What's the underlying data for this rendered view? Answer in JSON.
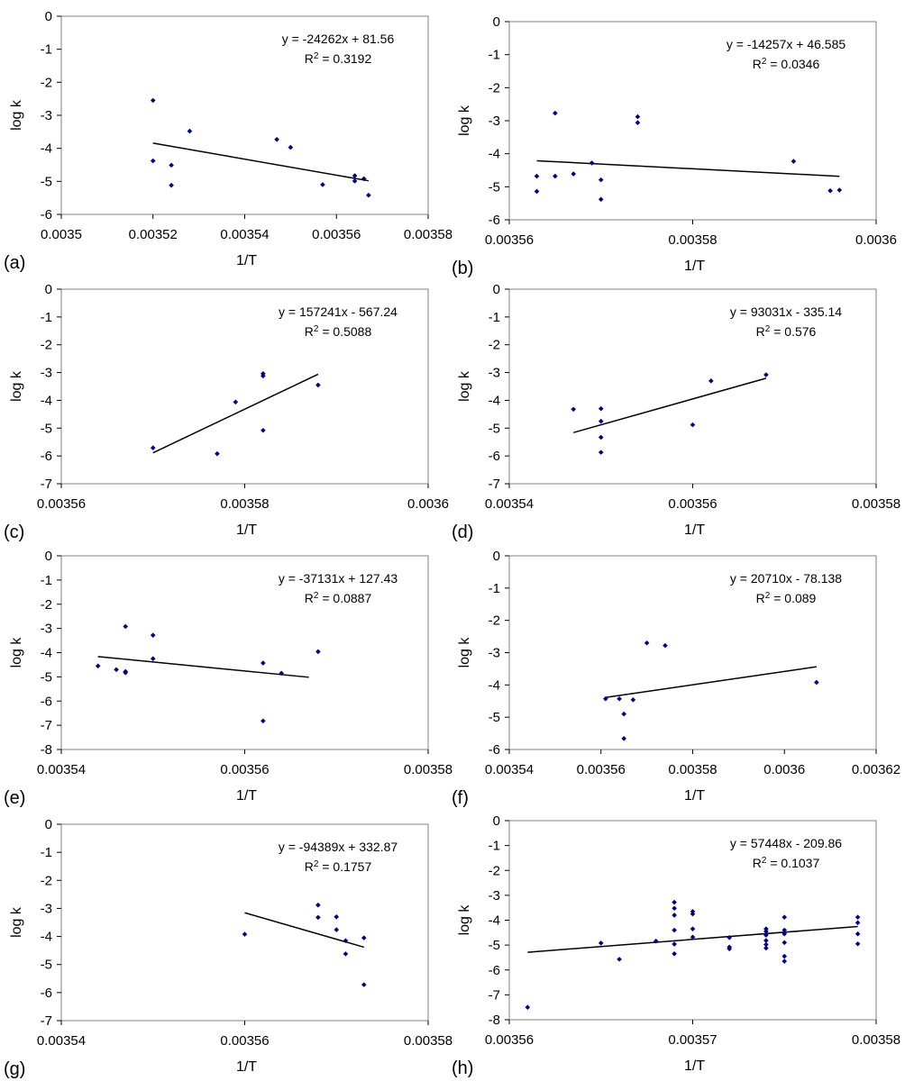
{
  "chart_data": [
    {
      "type": "scatter",
      "panel_label": "(a)",
      "xlabel": "1/T",
      "ylabel": "log k",
      "xlim": [
        0.0035,
        0.00358
      ],
      "ylim": [
        -6,
        0
      ],
      "xticks": [
        0.0035,
        0.00352,
        0.00354,
        0.00356,
        0.00358
      ],
      "xtick_labels": [
        "0.0035",
        "0.00352",
        "0.00354",
        "0.00356",
        "0.00358"
      ],
      "yticks": [
        0,
        -1,
        -2,
        -3,
        -4,
        -5,
        -6
      ],
      "ytick_labels": [
        "0",
        "-1",
        "-2",
        "-3",
        "-4",
        "-5",
        "-6"
      ],
      "equation": "y = -24262x + 81.56",
      "r2_label": "R",
      "r2_value": " = 0.3192",
      "legend_position": "top-right",
      "trend": {
        "slope": -24262,
        "intercept": 81.56,
        "x_range": [
          0.00352,
          0.003567
        ]
      },
      "points": [
        [
          0.00352,
          -2.55
        ],
        [
          0.00352,
          -4.38
        ],
        [
          0.003524,
          -4.51
        ],
        [
          0.003524,
          -5.12
        ],
        [
          0.003528,
          -3.48
        ],
        [
          0.003547,
          -3.73
        ],
        [
          0.00355,
          -3.97
        ],
        [
          0.003557,
          -5.1
        ],
        [
          0.003564,
          -4.83
        ],
        [
          0.003564,
          -4.99
        ],
        [
          0.003566,
          -4.92
        ],
        [
          0.003567,
          -5.42
        ]
      ]
    },
    {
      "type": "scatter",
      "panel_label": "(b)",
      "xlabel": "1/T",
      "ylabel": "log k",
      "xlim": [
        0.00356,
        0.0036
      ],
      "ylim": [
        -6,
        0
      ],
      "xticks": [
        0.00356,
        0.00358,
        0.0036
      ],
      "xtick_labels": [
        "0.00356",
        "0.00358",
        "0.0036"
      ],
      "yticks": [
        0,
        -1,
        -2,
        -3,
        -4,
        -5,
        -6
      ],
      "ytick_labels": [
        "0",
        "-1",
        "-2",
        "-3",
        "-4",
        "-5",
        "-6"
      ],
      "equation": "y = -14257x + 46.585",
      "r2_label": "R",
      "r2_value": " = 0.0346",
      "legend_position": "top-right",
      "trend": {
        "slope": -14257,
        "intercept": 46.585,
        "x_range": [
          0.003563,
          0.003596
        ]
      },
      "points": [
        [
          0.003563,
          -4.68
        ],
        [
          0.003563,
          -5.14
        ],
        [
          0.003565,
          -2.77
        ],
        [
          0.003565,
          -4.68
        ],
        [
          0.003567,
          -4.61
        ],
        [
          0.003569,
          -4.28
        ],
        [
          0.00357,
          -4.79
        ],
        [
          0.00357,
          -5.38
        ],
        [
          0.003574,
          -2.88
        ],
        [
          0.003574,
          -3.06
        ],
        [
          0.003591,
          -4.23
        ],
        [
          0.003595,
          -5.12
        ],
        [
          0.003596,
          -5.1
        ]
      ]
    },
    {
      "type": "scatter",
      "panel_label": "(c)",
      "xlabel": "1/T",
      "ylabel": "log k",
      "xlim": [
        0.00356,
        0.0036
      ],
      "ylim": [
        -7,
        0
      ],
      "xticks": [
        0.00356,
        0.00358,
        0.0036
      ],
      "xtick_labels": [
        "0.00356",
        "0.00358",
        "0.0036"
      ],
      "yticks": [
        0,
        -1,
        -2,
        -3,
        -4,
        -5,
        -6,
        -7
      ],
      "ytick_labels": [
        "0",
        "-1",
        "-2",
        "-3",
        "-4",
        "-5",
        "-6",
        "-7"
      ],
      "equation": "y = 157241x - 567.24",
      "r2_label": "R",
      "r2_value": " = 0.5088",
      "legend_position": "top-right",
      "trend": {
        "slope": 157241,
        "intercept": -567.24,
        "x_range": [
          0.00357,
          0.003588
        ]
      },
      "points": [
        [
          0.00357,
          -5.71
        ],
        [
          0.003577,
          -5.92
        ],
        [
          0.003579,
          -4.06
        ],
        [
          0.003582,
          -3.04
        ],
        [
          0.003582,
          -3.12
        ],
        [
          0.003582,
          -5.08
        ],
        [
          0.003588,
          -3.45
        ]
      ]
    },
    {
      "type": "scatter",
      "panel_label": "(d)",
      "xlabel": "1/T",
      "ylabel": "log k",
      "xlim": [
        0.00354,
        0.00358
      ],
      "ylim": [
        -7,
        0
      ],
      "xticks": [
        0.00354,
        0.00356,
        0.00358
      ],
      "xtick_labels": [
        "0.00354",
        "0.00356",
        "0.00358"
      ],
      "yticks": [
        0,
        -1,
        -2,
        -3,
        -4,
        -5,
        -6,
        -7
      ],
      "ytick_labels": [
        "0",
        "-1",
        "-2",
        "-3",
        "-4",
        "-5",
        "-6",
        "-7"
      ],
      "equation": "y = 93031x - 335.14",
      "r2_label": "R",
      "r2_value": " = 0.576",
      "legend_position": "top-right",
      "trend": {
        "slope": 93031,
        "intercept": -335.14,
        "x_range": [
          0.003547,
          0.003568
        ]
      },
      "points": [
        [
          0.003547,
          -4.32
        ],
        [
          0.00355,
          -4.3
        ],
        [
          0.00355,
          -4.75
        ],
        [
          0.00355,
          -5.33
        ],
        [
          0.00355,
          -5.87
        ],
        [
          0.00356,
          -4.88
        ],
        [
          0.003562,
          -3.3
        ],
        [
          0.003568,
          -3.08
        ]
      ]
    },
    {
      "type": "scatter",
      "panel_label": "(e)",
      "xlabel": "1/T",
      "ylabel": "log k",
      "xlim": [
        0.00354,
        0.00358
      ],
      "ylim": [
        -8,
        0
      ],
      "xticks": [
        0.00354,
        0.00356,
        0.00358
      ],
      "xtick_labels": [
        "0.00354",
        "0.00356",
        "0.00358"
      ],
      "yticks": [
        0,
        -1,
        -2,
        -3,
        -4,
        -5,
        -6,
        -7,
        -8
      ],
      "ytick_labels": [
        "0",
        "-1",
        "-2",
        "-3",
        "-4",
        "-5",
        "-6",
        "-7",
        "-8"
      ],
      "equation": "y = -37131x + 127.43",
      "r2_label": "R",
      "r2_value": " = 0.0887",
      "legend_position": "top-right",
      "trend": {
        "slope": -37131,
        "intercept": 127.43,
        "x_range": [
          0.003544,
          0.003567
        ]
      },
      "points": [
        [
          0.003544,
          -4.55
        ],
        [
          0.003546,
          -4.7
        ],
        [
          0.003547,
          -2.92
        ],
        [
          0.003547,
          -4.78
        ],
        [
          0.003547,
          -4.83
        ],
        [
          0.00355,
          -3.28
        ],
        [
          0.00355,
          -4.25
        ],
        [
          0.003562,
          -4.43
        ],
        [
          0.003562,
          -6.82
        ],
        [
          0.003564,
          -4.85
        ],
        [
          0.003568,
          -3.96
        ]
      ]
    },
    {
      "type": "scatter",
      "panel_label": "(f)",
      "xlabel": "1/T",
      "ylabel": "log k",
      "xlim": [
        0.00354,
        0.00362
      ],
      "ylim": [
        -6,
        0
      ],
      "xticks": [
        0.00354,
        0.00356,
        0.00358,
        0.0036,
        0.00362
      ],
      "xtick_labels": [
        "0.00354",
        "0.00356",
        "0.00358",
        "0.0036",
        "0.00362"
      ],
      "yticks": [
        0,
        -1,
        -2,
        -3,
        -4,
        -5,
        -6
      ],
      "ytick_labels": [
        "0",
        "-1",
        "-2",
        "-3",
        "-4",
        "-5",
        "-6"
      ],
      "equation": "y = 20710x - 78.138",
      "r2_label": "R",
      "r2_value": " = 0.089",
      "legend_position": "top-right",
      "trend": {
        "slope": 20710,
        "intercept": -78.138,
        "x_range": [
          0.003561,
          0.003607
        ]
      },
      "points": [
        [
          0.003561,
          -4.43
        ],
        [
          0.003564,
          -4.43
        ],
        [
          0.003565,
          -4.9
        ],
        [
          0.003565,
          -5.66
        ],
        [
          0.003567,
          -4.46
        ],
        [
          0.00357,
          -2.7
        ],
        [
          0.003574,
          -2.78
        ],
        [
          0.003607,
          -3.92
        ]
      ]
    },
    {
      "type": "scatter",
      "panel_label": "(g)",
      "xlabel": "1/T",
      "ylabel": "log k",
      "xlim": [
        0.00354,
        0.00358
      ],
      "ylim": [
        -7,
        0
      ],
      "xticks": [
        0.00354,
        0.00356,
        0.00358
      ],
      "xtick_labels": [
        "0.00354",
        "0.00356",
        "0.00358"
      ],
      "yticks": [
        0,
        -1,
        -2,
        -3,
        -4,
        -5,
        -6,
        -7
      ],
      "ytick_labels": [
        "0",
        "-1",
        "-2",
        "-3",
        "-4",
        "-5",
        "-6",
        "-7"
      ],
      "equation": "y = -94389x + 332.87",
      "r2_label": "R",
      "r2_value": " = 0.1757",
      "legend_position": "top-right",
      "trend": {
        "slope": -94389,
        "intercept": 332.87,
        "x_range": [
          0.00356,
          0.003573
        ]
      },
      "points": [
        [
          0.00356,
          -3.92
        ],
        [
          0.003568,
          -2.88
        ],
        [
          0.003568,
          -3.32
        ],
        [
          0.00357,
          -3.3
        ],
        [
          0.00357,
          -3.76
        ],
        [
          0.003571,
          -4.15
        ],
        [
          0.003571,
          -4.62
        ],
        [
          0.003573,
          -4.05
        ],
        [
          0.003573,
          -5.72
        ]
      ]
    },
    {
      "type": "scatter",
      "panel_label": "(h)",
      "xlabel": "1/T",
      "ylabel": "log k",
      "xlim": [
        0.00356,
        0.00358
      ],
      "ylim": [
        -8,
        0
      ],
      "xticks": [
        0.00356,
        0.00357,
        0.00358
      ],
      "xtick_labels": [
        "0.00356",
        "0.00357",
        "0.00358"
      ],
      "yticks": [
        0,
        -1,
        -2,
        -3,
        -4,
        -5,
        -6,
        -7,
        -8
      ],
      "ytick_labels": [
        "0",
        "-1",
        "-2",
        "-3",
        "-4",
        "-5",
        "-6",
        "-7",
        "-8"
      ],
      "equation": "y = 57448x - 209.86",
      "r2_label": "R",
      "r2_value": " = 0.1037",
      "legend_position": "top-right",
      "trend": {
        "slope": 57448,
        "intercept": -209.86,
        "x_range": [
          0.003561,
          0.003579
        ]
      },
      "points": [
        [
          0.003561,
          -7.5
        ],
        [
          0.003565,
          -4.92
        ],
        [
          0.003566,
          -5.57
        ],
        [
          0.003568,
          -4.84
        ],
        [
          0.003569,
          -3.28
        ],
        [
          0.003569,
          -3.52
        ],
        [
          0.003569,
          -3.8
        ],
        [
          0.003569,
          -4.4
        ],
        [
          0.003569,
          -4.96
        ],
        [
          0.003569,
          -5.35
        ],
        [
          0.00357,
          -3.65
        ],
        [
          0.00357,
          -3.75
        ],
        [
          0.00357,
          -4.35
        ],
        [
          0.00357,
          -4.68
        ],
        [
          0.003572,
          -4.7
        ],
        [
          0.003572,
          -5.08
        ],
        [
          0.003572,
          -5.15
        ],
        [
          0.003574,
          -4.35
        ],
        [
          0.003574,
          -4.45
        ],
        [
          0.003574,
          -4.6
        ],
        [
          0.003574,
          -4.82
        ],
        [
          0.003574,
          -4.98
        ],
        [
          0.003574,
          -5.12
        ],
        [
          0.003575,
          -3.88
        ],
        [
          0.003575,
          -4.4
        ],
        [
          0.003575,
          -4.55
        ],
        [
          0.003575,
          -4.9
        ],
        [
          0.003575,
          -5.45
        ],
        [
          0.003575,
          -5.65
        ],
        [
          0.003579,
          -3.88
        ],
        [
          0.003579,
          -4.1
        ],
        [
          0.003579,
          -4.55
        ],
        [
          0.003579,
          -4.95
        ]
      ]
    }
  ]
}
